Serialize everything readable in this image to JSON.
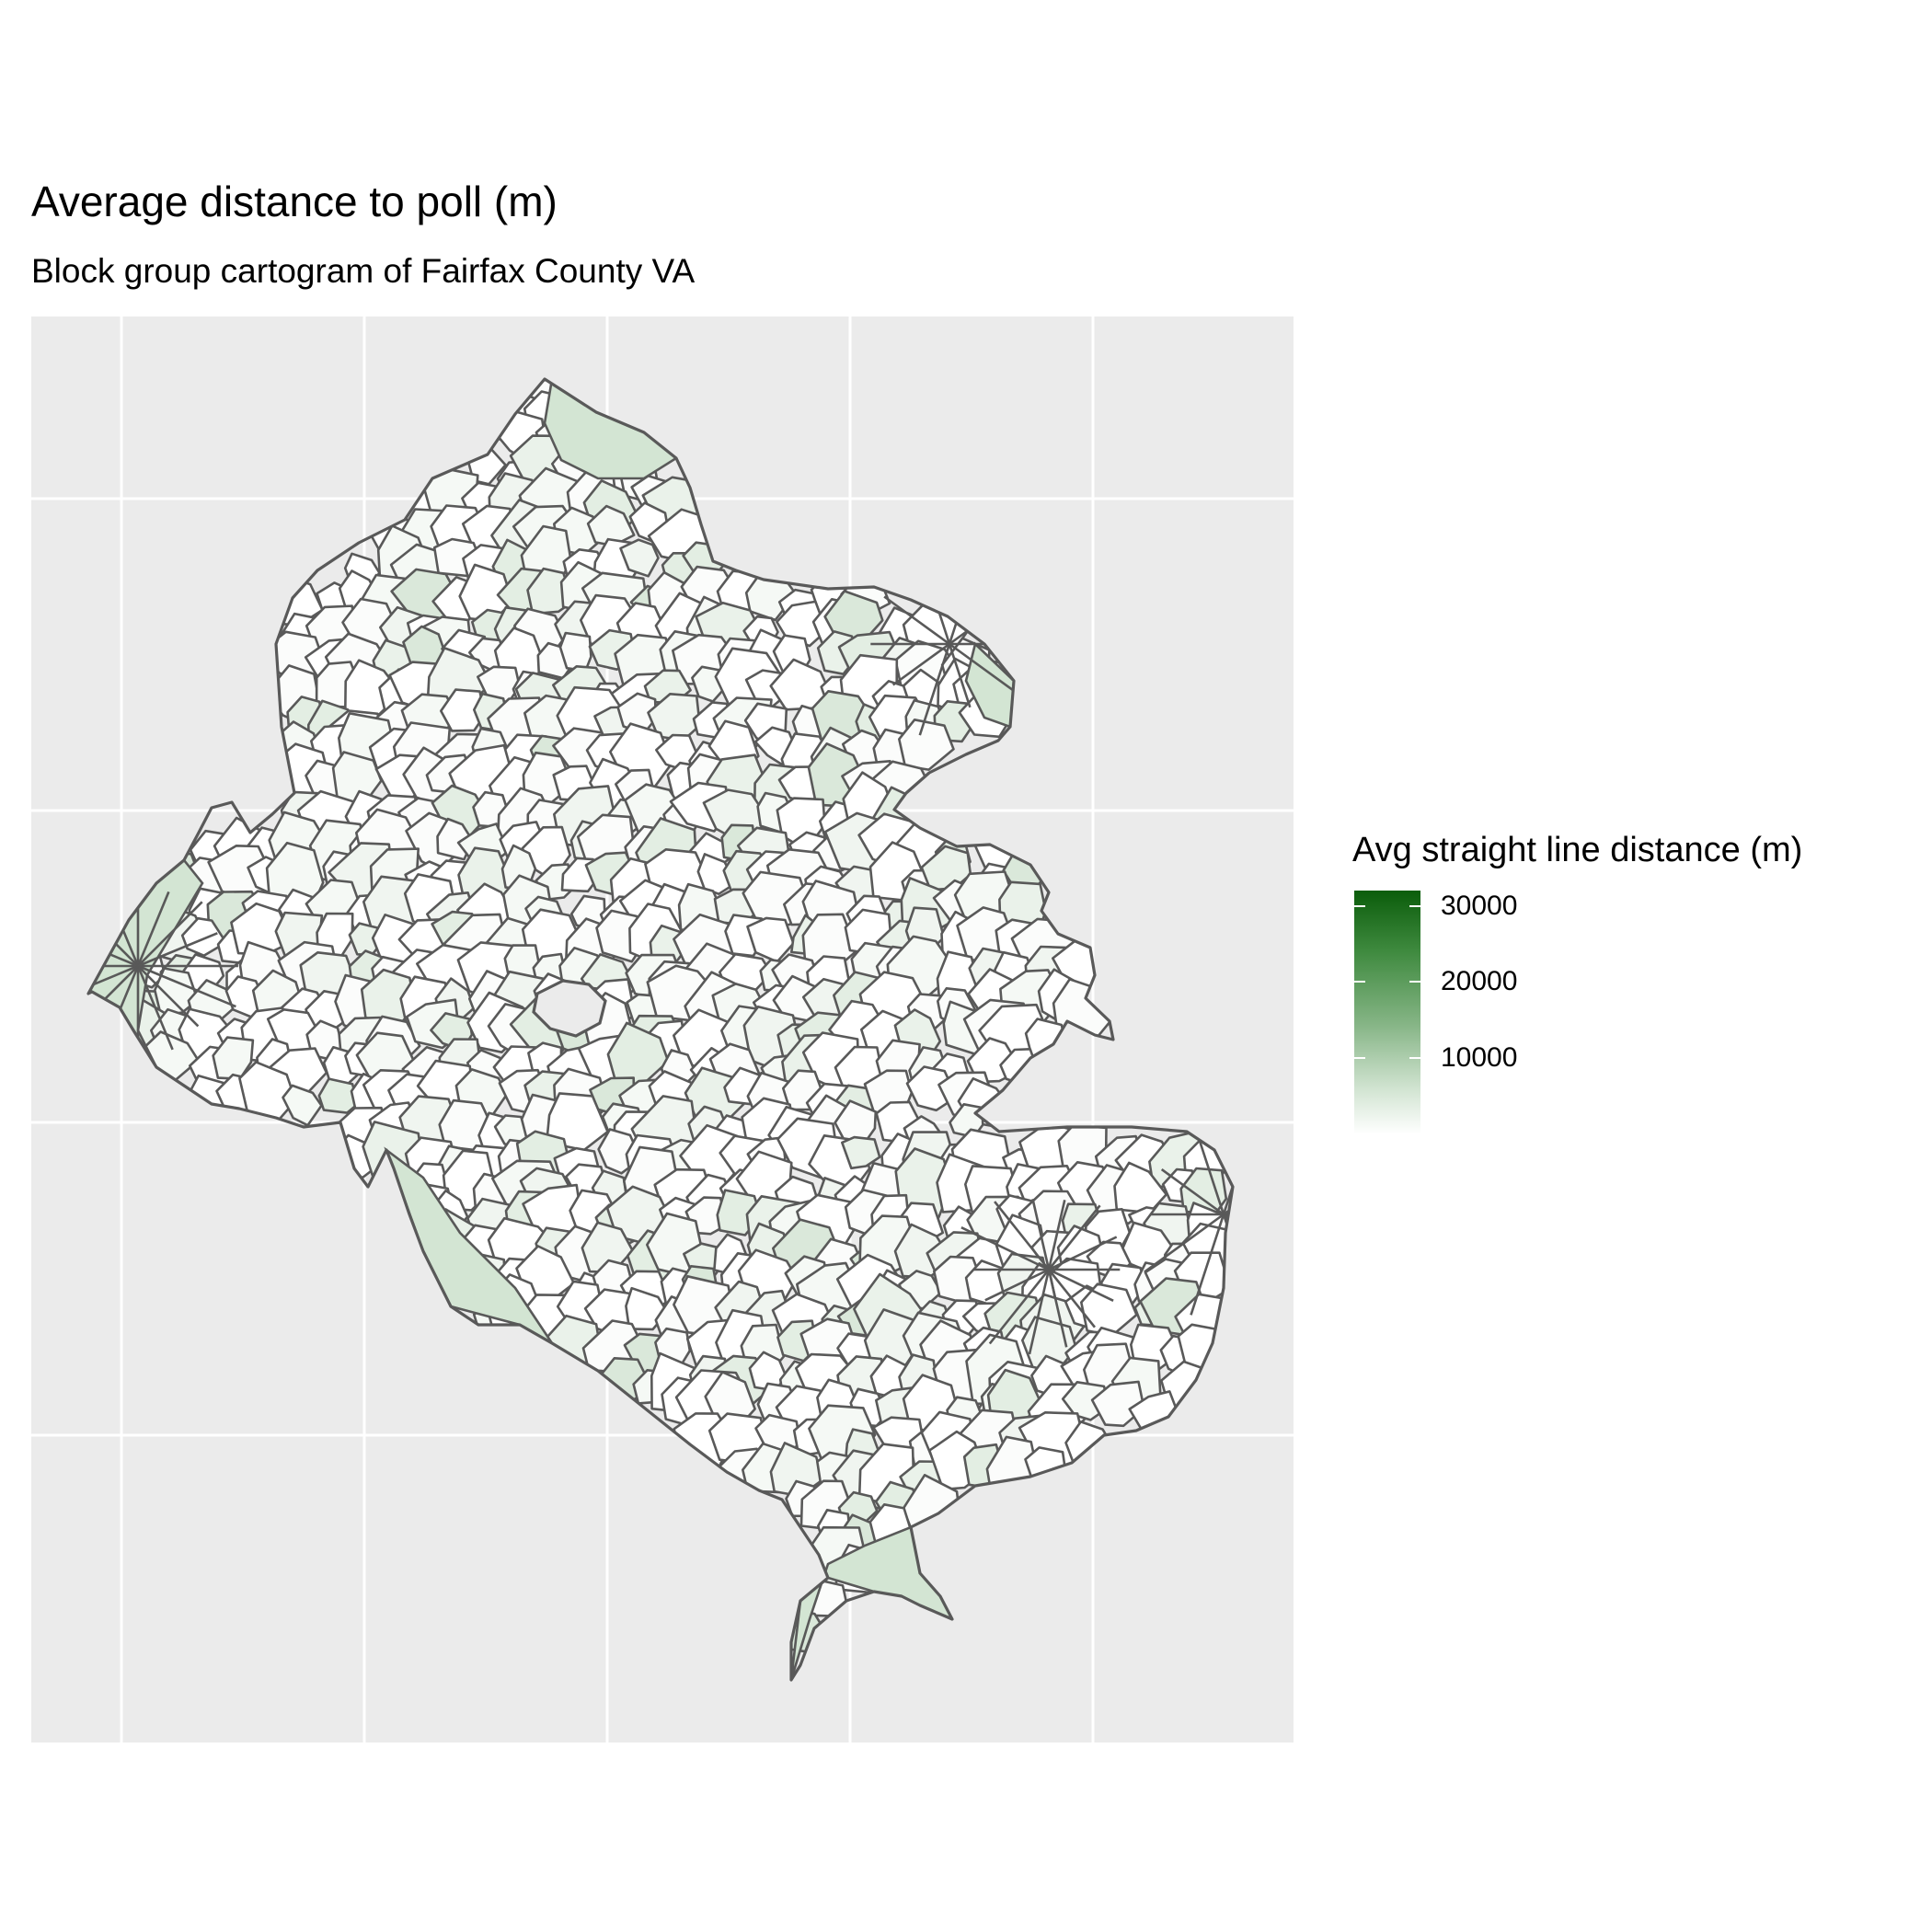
{
  "figure": {
    "title": "Average distance to poll (m)",
    "subtitle": "Block group cartogram of Fairfax County VA"
  },
  "legend": {
    "title": "Avg straight line distance (m)",
    "breaks": [
      {
        "value": 30000,
        "label": "30000"
      },
      {
        "value": 20000,
        "label": "20000"
      },
      {
        "value": 10000,
        "label": "10000"
      }
    ],
    "range": [
      0,
      32000
    ],
    "colors": {
      "low": "#ffffff",
      "high": "#0b5d0b"
    }
  },
  "panel": {
    "background": "#ebebeb",
    "grid_color": "#ffffff",
    "grid": true,
    "axis_labels_shown": false
  },
  "map": {
    "region": "Fairfax County VA",
    "geography": "Block group",
    "boundary_color": "#595959"
  }
}
